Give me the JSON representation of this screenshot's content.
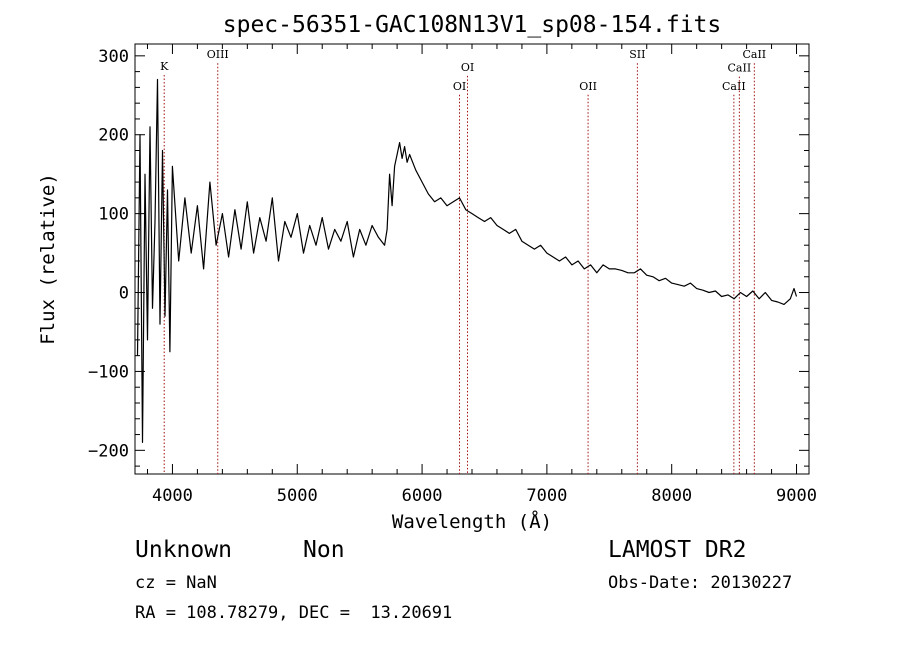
{
  "chart_data": {
    "type": "line",
    "title": "spec-56351-GAC108N13V1_sp08-154.fits",
    "xlabel": "Wavelength (Å)",
    "ylabel": "Flux (relative)",
    "xlim": [
      3700,
      9100
    ],
    "ylim": [
      -230,
      315
    ],
    "xticks": [
      4000,
      5000,
      6000,
      7000,
      8000,
      9000
    ],
    "yticks": [
      -200,
      -100,
      0,
      100,
      200,
      300
    ],
    "grid": false,
    "series": [
      {
        "x": [
          3720,
          3740,
          3760,
          3780,
          3800,
          3820,
          3840,
          3860,
          3880,
          3900,
          3920,
          3940,
          3960,
          3980,
          4000,
          4050,
          4100,
          4150,
          4200,
          4250,
          4300,
          4350,
          4400,
          4450,
          4500,
          4550,
          4600,
          4650,
          4700,
          4750,
          4800,
          4850,
          4900,
          4950,
          5000,
          5050,
          5100,
          5150,
          5200,
          5250,
          5300,
          5350,
          5400,
          5450,
          5500,
          5550,
          5600,
          5650,
          5700,
          5720,
          5740,
          5760,
          5780,
          5800,
          5820,
          5840,
          5860,
          5880,
          5900,
          5950,
          6000,
          6050,
          6100,
          6150,
          6200,
          6250,
          6300,
          6350,
          6400,
          6450,
          6500,
          6550,
          6600,
          6650,
          6700,
          6750,
          6800,
          6850,
          6900,
          6950,
          7000,
          7050,
          7100,
          7150,
          7200,
          7250,
          7300,
          7350,
          7400,
          7450,
          7500,
          7550,
          7600,
          7650,
          7700,
          7750,
          7800,
          7850,
          7900,
          7950,
          8000,
          8050,
          8100,
          8150,
          8200,
          8250,
          8300,
          8350,
          8400,
          8450,
          8500,
          8550,
          8600,
          8650,
          8700,
          8750,
          8800,
          8850,
          8900,
          8950,
          8980,
          9000
        ],
        "y": [
          -80,
          200,
          -190,
          150,
          -60,
          210,
          -20,
          90,
          270,
          -40,
          180,
          -30,
          130,
          -75,
          160,
          40,
          120,
          50,
          110,
          30,
          140,
          60,
          100,
          45,
          105,
          55,
          115,
          50,
          95,
          65,
          120,
          40,
          90,
          70,
          100,
          50,
          85,
          60,
          95,
          55,
          80,
          65,
          90,
          45,
          80,
          60,
          85,
          70,
          60,
          80,
          150,
          110,
          160,
          175,
          190,
          170,
          185,
          165,
          175,
          155,
          140,
          125,
          115,
          120,
          110,
          115,
          120,
          105,
          100,
          95,
          90,
          95,
          85,
          80,
          75,
          80,
          65,
          60,
          55,
          60,
          50,
          45,
          40,
          45,
          35,
          40,
          30,
          35,
          25,
          35,
          30,
          30,
          28,
          25,
          25,
          30,
          22,
          20,
          15,
          18,
          12,
          10,
          8,
          12,
          5,
          3,
          0,
          2,
          -5,
          -3,
          -8,
          0,
          -5,
          2,
          -8,
          0,
          -10,
          -12,
          -15,
          -8,
          5,
          -5
        ]
      }
    ],
    "lines": [
      {
        "label": "K",
        "x": 3934,
        "label_y": 282
      },
      {
        "label": "OIII",
        "x": 4363,
        "label_y": 297
      },
      {
        "label": "OI",
        "x": 6300,
        "label_y": 257
      },
      {
        "label": "OI",
        "x": 6364,
        "label_y": 281
      },
      {
        "label": "OII",
        "x": 7330,
        "label_y": 257
      },
      {
        "label": "SII",
        "x": 7725,
        "label_y": 297
      },
      {
        "label": "CaII",
        "x": 8498,
        "label_y": 257
      },
      {
        "label": "CaII",
        "x": 8542,
        "label_y": 280
      },
      {
        "label": "CaII",
        "x": 8662,
        "label_y": 297
      }
    ],
    "line_color": "#a01010"
  },
  "info": {
    "class": "Unknown",
    "subclass": "Non",
    "survey": "LAMOST DR2",
    "cz": "cz = NaN",
    "obs_date": "Obs-Date: 20130227",
    "radec": "RA = 108.78279, DEC =  13.20691"
  }
}
